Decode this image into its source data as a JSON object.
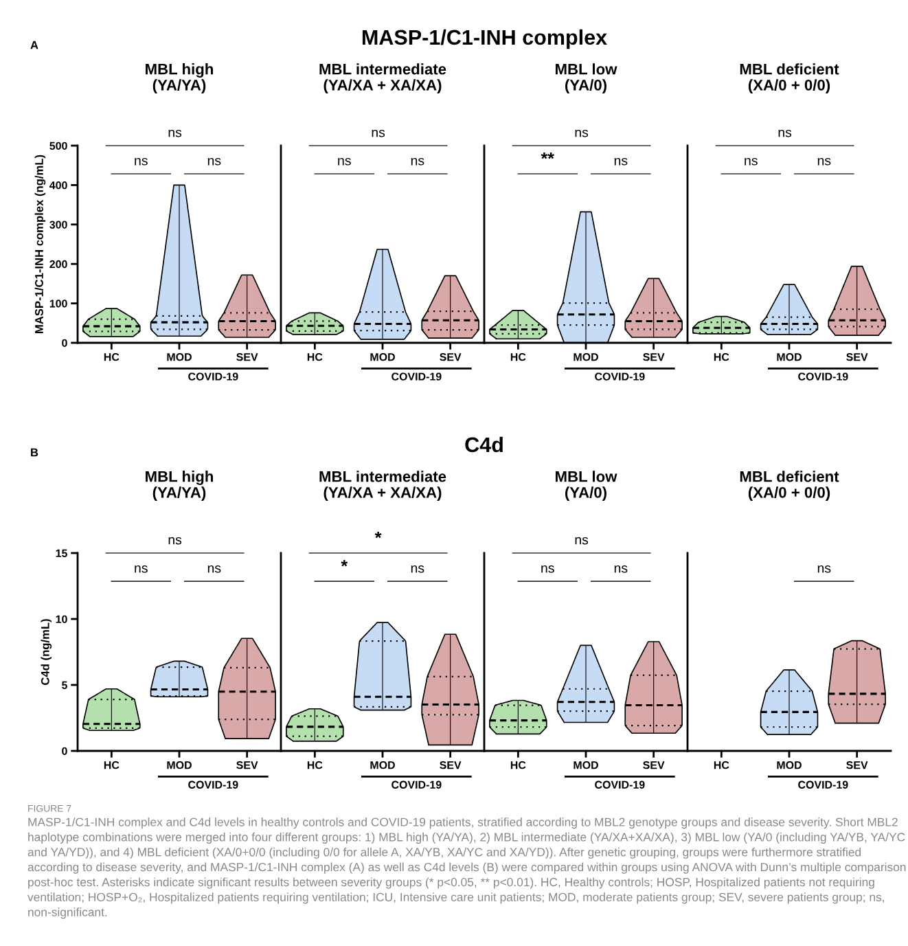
{
  "chart_data": [
    {
      "type": "box",
      "subtitle": "MBL high\n(YA/YA)",
      "ylabel": "MASP-1/C1-INH complex (ng/mL)",
      "categories": [
        "HC",
        "MOD",
        "SEV"
      ],
      "colors": [
        "#b3e0ad",
        "#c6dcf5",
        "#d9a9a9"
      ],
      "ylim": [
        0,
        500
      ],
      "yticks": [
        0,
        100,
        200,
        300,
        400,
        500
      ],
      "boxes": [
        {
          "low": 16,
          "q1": 29,
          "median": 42,
          "q3": 60,
          "high": 87
        },
        {
          "low": 17,
          "q1": 34,
          "median": 52,
          "q3": 68,
          "high": 400
        },
        {
          "low": 14,
          "q1": 33,
          "median": 55,
          "q3": 76,
          "high": 172
        }
      ],
      "annotations": [
        "A",
        "MASP-1/C1-INH complex",
        "ns",
        "ns",
        "ns",
        "COVID-19"
      ]
    },
    {
      "type": "box",
      "subtitle": "MBL intermediate\n(YA/XA + XA/XA)",
      "categories": [
        "HC",
        "MOD",
        "SEV"
      ],
      "colors": [
        "#b3e0ad",
        "#c6dcf5",
        "#d9a9a9"
      ],
      "ylim": [
        0,
        500
      ],
      "yticks": [
        0,
        100,
        200,
        300,
        400,
        500
      ],
      "tick_labels": "x",
      "boxes": [
        {
          "low": 21,
          "q1": 30,
          "median": 43,
          "q3": 55,
          "high": 76
        },
        {
          "low": 9,
          "q1": 31,
          "median": 48,
          "q3": 78,
          "high": 237
        },
        {
          "low": 12,
          "q1": 33,
          "median": 57,
          "q3": 80,
          "high": 170
        }
      ],
      "annotations": [
        "ns",
        "ns",
        "ns",
        "COVID-19"
      ]
    },
    {
      "type": "box",
      "subtitle": "MBL low\n(YA/0)",
      "categories": [
        "HC",
        "MOD",
        "SEV"
      ],
      "colors": [
        "#b3e0ad",
        "#c6dcf5",
        "#d9a9a9"
      ],
      "ylim": [
        0,
        500
      ],
      "yticks": [
        0,
        100,
        200,
        300,
        400,
        500
      ],
      "tick_labels": "x",
      "boxes": [
        {
          "low": 10,
          "q1": 23,
          "median": 34,
          "q3": 45,
          "high": 82
        },
        {
          "low": 0,
          "q1": 45,
          "median": 72,
          "q3": 101,
          "high": 332
        },
        {
          "low": 14,
          "q1": 34,
          "median": 55,
          "q3": 76,
          "high": 163
        }
      ],
      "annotations": [
        "ns",
        "**",
        "ns",
        "COVID-19"
      ]
    },
    {
      "type": "box",
      "subtitle": "MBL deficient\n(XA/0 + 0/0)",
      "categories": [
        "HC",
        "MOD",
        "SEV"
      ],
      "colors": [
        "#b3e0ad",
        "#c6dcf5",
        "#d9a9a9"
      ],
      "ylim": [
        0,
        500
      ],
      "yticks": [
        0,
        100,
        200,
        300,
        400,
        500
      ],
      "tick_labels": "x",
      "boxes": [
        {
          "low": 23,
          "q1": 25,
          "median": 38,
          "q3": 52,
          "high": 67
        },
        {
          "low": 21,
          "q1": 34,
          "median": 48,
          "q3": 65,
          "high": 148
        },
        {
          "low": 19,
          "q1": 41,
          "median": 57,
          "q3": 85,
          "high": 194
        }
      ],
      "annotations": [
        "ns",
        "ns",
        "ns",
        "COVID-19"
      ]
    },
    {
      "type": "box",
      "subtitle": "MBL high\n(YA/YA)",
      "ylabel": "C4d (ng/mL)",
      "categories": [
        "HC",
        "MOD",
        "SEV"
      ],
      "colors": [
        "#b3e0ad",
        "#c6dcf5",
        "#d9a9a9"
      ],
      "ylim": [
        0,
        15
      ],
      "yticks": [
        0,
        5,
        10,
        15
      ],
      "boxes": [
        {
          "low": 1.55,
          "q1": 1.73,
          "median": 2.04,
          "q3": 3.9,
          "high": 4.7
        },
        {
          "low": 4.1,
          "q1": 4.16,
          "median": 4.66,
          "q3": 6.35,
          "high": 6.8
        },
        {
          "low": 0.93,
          "q1": 2.39,
          "median": 4.49,
          "q3": 6.31,
          "high": 8.53
        }
      ],
      "annotations": [
        "B",
        "C4d",
        "ns",
        "ns",
        "ns",
        "COVID-19"
      ]
    },
    {
      "type": "box",
      "subtitle": "MBL intermediate\n(YA/XA + XA/XA)",
      "categories": [
        "HC",
        "MOD",
        "SEV"
      ],
      "colors": [
        "#b3e0ad",
        "#c6dcf5",
        "#d9a9a9"
      ],
      "ylim": [
        0,
        15
      ],
      "yticks": [
        0,
        5,
        10,
        15
      ],
      "tick_labels": "x",
      "boxes": [
        {
          "low": 0.74,
          "q1": 1.11,
          "median": 1.83,
          "q3": 2.64,
          "high": 3.19
        },
        {
          "low": 3.09,
          "q1": 3.34,
          "median": 4.1,
          "q3": 8.33,
          "high": 9.73
        },
        {
          "low": 0.45,
          "q1": 2.74,
          "median": 3.52,
          "q3": 5.63,
          "high": 8.84
        }
      ],
      "annotations": [
        "*",
        "*",
        "ns",
        "COVID-19"
      ]
    },
    {
      "type": "box",
      "subtitle": "MBL low\n(YA/0)",
      "categories": [
        "HC",
        "MOD",
        "SEV"
      ],
      "colors": [
        "#b3e0ad",
        "#c6dcf5",
        "#d9a9a9"
      ],
      "ylim": [
        0,
        15
      ],
      "yticks": [
        0,
        5,
        10,
        15
      ],
      "tick_labels": "x",
      "boxes": [
        {
          "low": 1.28,
          "q1": 1.81,
          "median": 2.31,
          "q3": 3.46,
          "high": 3.83
        },
        {
          "low": 2.16,
          "q1": 3.01,
          "median": 3.71,
          "q3": 4.7,
          "high": 8.0
        },
        {
          "low": 1.34,
          "q1": 1.92,
          "median": 3.46,
          "q3": 5.73,
          "high": 8.28
        }
      ],
      "annotations": [
        "ns",
        "ns",
        "ns",
        "COVID-19"
      ]
    },
    {
      "type": "box",
      "subtitle": "MBL deficient\n(XA/0 + 0/0)",
      "categories": [
        "HC",
        "MOD",
        "SEV"
      ],
      "colors": [
        "#b3e0ad",
        "#c6dcf5",
        "#d9a9a9"
      ],
      "ylim": [
        0,
        15
      ],
      "yticks": [
        0,
        5,
        10,
        15
      ],
      "tick_labels": "x",
      "boxes": [
        null,
        {
          "low": 1.24,
          "q1": 1.81,
          "median": 2.95,
          "q3": 4.53,
          "high": 6.14
        },
        {
          "low": 2.1,
          "q1": 3.54,
          "median": 4.33,
          "q3": 7.73,
          "high": 8.35
        }
      ],
      "annotations": [
        "ns",
        "COVID-19",
        "FIGURE 7",
        "MASP-1/C1-INH complex and C4d levels in healthy controls and COVID-19 patients, stratified according to MBL2 genotype groups and disease severity. Short MBL2 haplotype combinations were merged into four different groups: 1) MBL high (YA/YA), 2) MBL intermediate (YA/XA+XA/XA), 3) MBL low (YA/0 (including YA/YB, YA/YC and YA/YD)), and 4) MBL deficient (XA/0+0/0 (including 0/0 for allele A, XA/YB, XA/YC and XA/YD)). After genetic grouping, groups were furthermore stratified according to disease severity, and MASP-1/C1-INH complex (A) as well as C4d levels (B) were compared within groups using ANOVA with Dunn’s multiple comparison post-hoc test. Asterisks indicate significant results between severity groups (* p<0.05, ** p<0.01). HC, Healthy controls; HOSP, Hospitalized patients not requiring ventilation; HOSP+O₂, Hospitalized patients requiring ventilation; ICU, Intensive care unit patients; MOD, moderate patients group; SEV, severe patients group; ns, non-significant."
      ]
    }
  ]
}
